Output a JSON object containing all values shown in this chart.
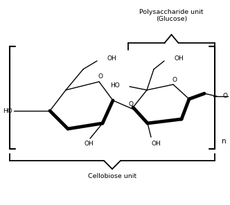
{
  "label_polysaccharide": "Polysaccharide unit\n(Glucose)",
  "label_cellobiose": "Cellobiose unit",
  "label_n": "n",
  "bg_color": "#ffffff",
  "line_color": "#000000",
  "figsize": [
    3.32,
    2.96
  ],
  "dpi": 100
}
